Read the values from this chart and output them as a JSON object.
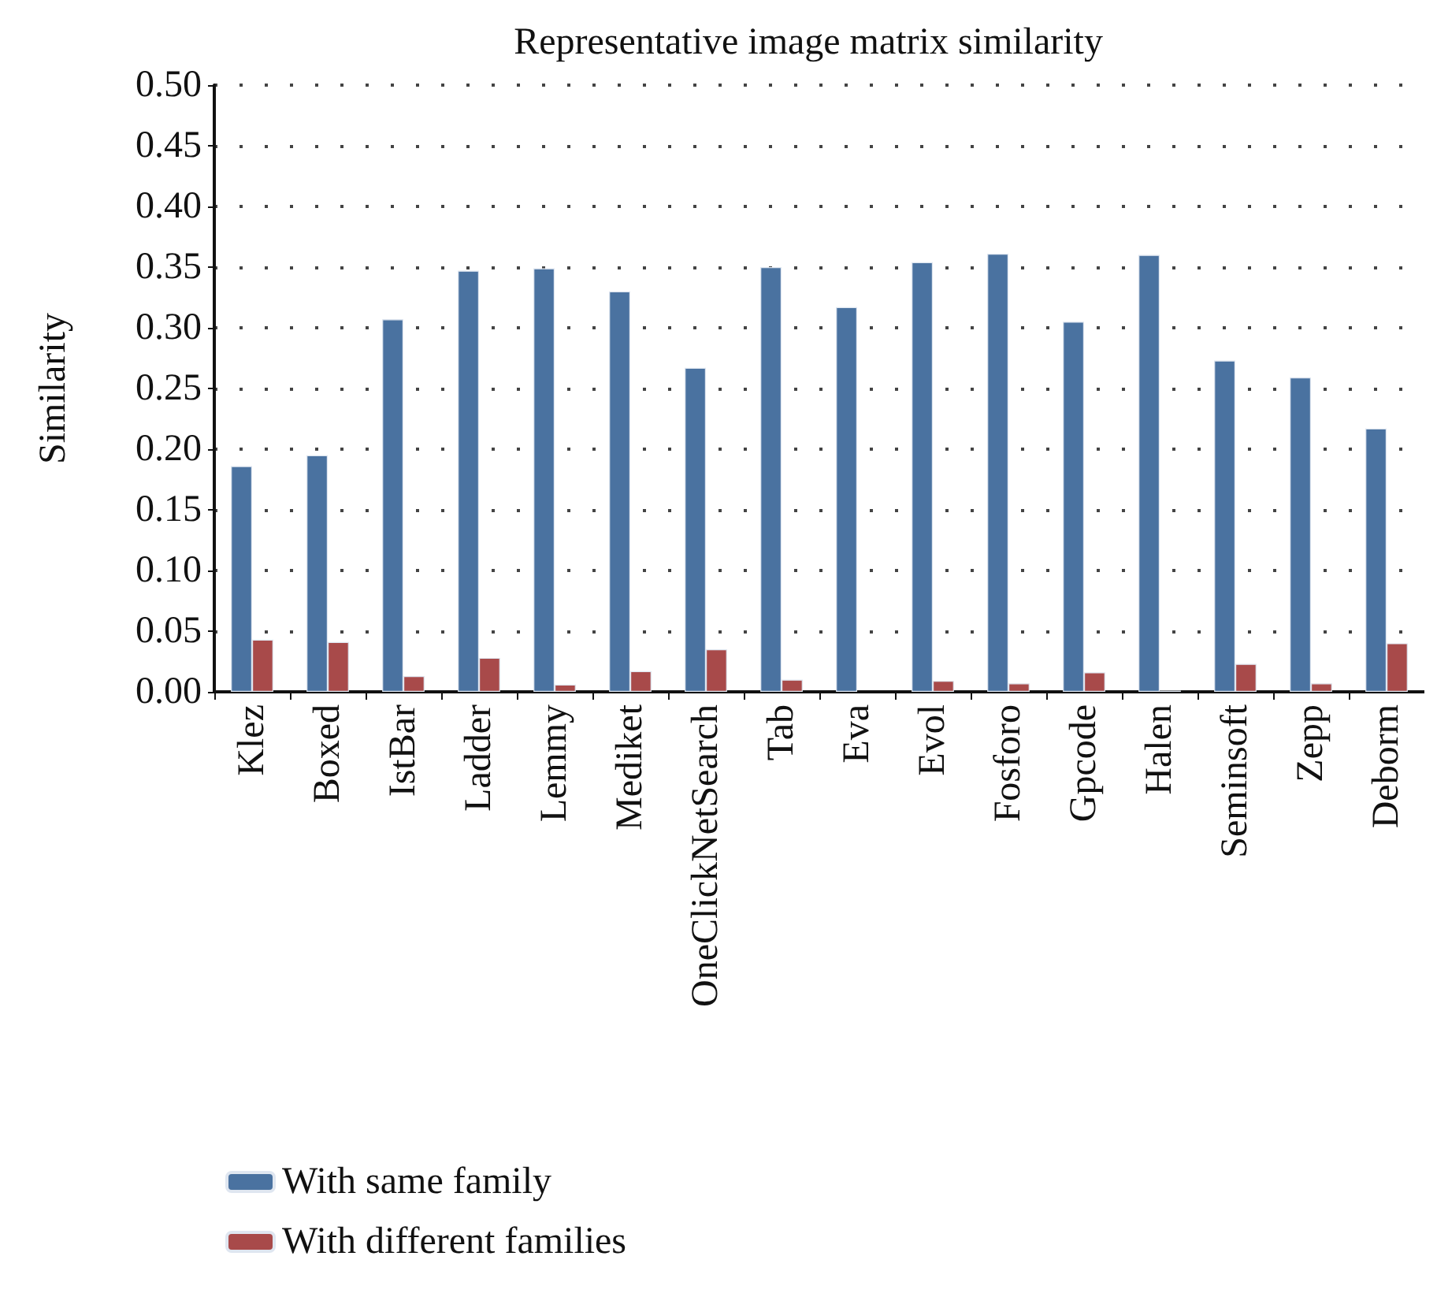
{
  "chart_data": {
    "type": "bar",
    "title": "Representative image matrix similarity",
    "ylabel": "Similarity",
    "categories": [
      "Klez",
      "Boxed",
      "IstBar",
      "Ladder",
      "Lemmy",
      "Mediket",
      "OneClickNetSearch",
      "Tab",
      "Eva",
      "Evol",
      "Fosforo",
      "Gpcode",
      "Halen",
      "Seminsoft",
      "Zepp",
      "Deborm"
    ],
    "series": [
      {
        "name": "With same family",
        "color": "#4a72a0",
        "values": [
          0.186,
          0.195,
          0.307,
          0.347,
          0.349,
          0.33,
          0.267,
          0.35,
          0.317,
          0.354,
          0.361,
          0.305,
          0.36,
          0.273,
          0.259,
          0.217
        ]
      },
      {
        "name": "With different families",
        "color": "#a84a4a",
        "values": [
          0.043,
          0.041,
          0.013,
          0.028,
          0.006,
          0.017,
          0.035,
          0.01,
          null,
          0.009,
          0.007,
          0.016,
          0.001,
          0.023,
          0.007,
          0.04
        ]
      }
    ],
    "ylim": [
      0,
      0.5
    ],
    "yticks": [
      {
        "value": 0,
        "label": "0.00"
      },
      {
        "value": 0.05,
        "label": "0.05"
      },
      {
        "value": 0.1,
        "label": "0.10"
      },
      {
        "value": 0.15,
        "label": "0.15"
      },
      {
        "value": 0.2,
        "label": "0.20"
      },
      {
        "value": 0.25,
        "label": "0.25"
      },
      {
        "value": 0.3,
        "label": "0.30"
      },
      {
        "value": 0.35,
        "label": "0.35"
      },
      {
        "value": 0.4,
        "label": "0.40"
      },
      {
        "value": 0.45,
        "label": "0.45"
      },
      {
        "value": 0.5,
        "label": "0.50"
      }
    ],
    "grid": "y",
    "legend": "bottom left"
  }
}
